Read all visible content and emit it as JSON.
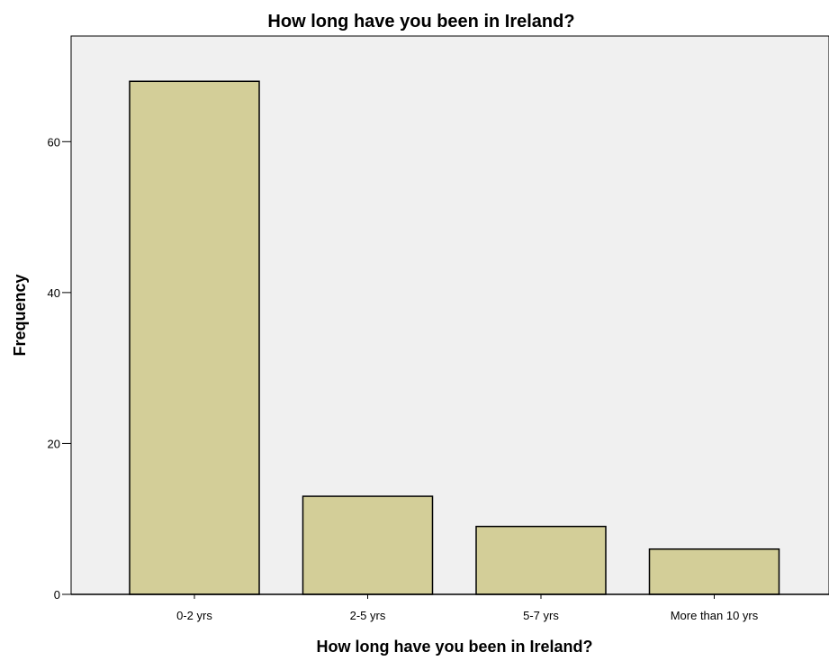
{
  "chart_data": {
    "type": "bar",
    "title": "How long have you been in Ireland?",
    "xlabel": "How long have you been in Ireland?",
    "ylabel": "Frequency",
    "categories": [
      "0-2 yrs",
      "2-5 yrs",
      "5-7 yrs",
      "More than 10 yrs"
    ],
    "values": [
      68,
      13,
      9,
      6
    ],
    "ylim": [
      0,
      74
    ],
    "yticks": [
      0,
      20,
      40,
      60
    ],
    "grid": false,
    "legend": "none",
    "colors": {
      "bar_fill": "#d3ce98",
      "bar_stroke": "#000000",
      "plot_background": "#f0f0f0",
      "page_background": "#ffffff"
    }
  }
}
